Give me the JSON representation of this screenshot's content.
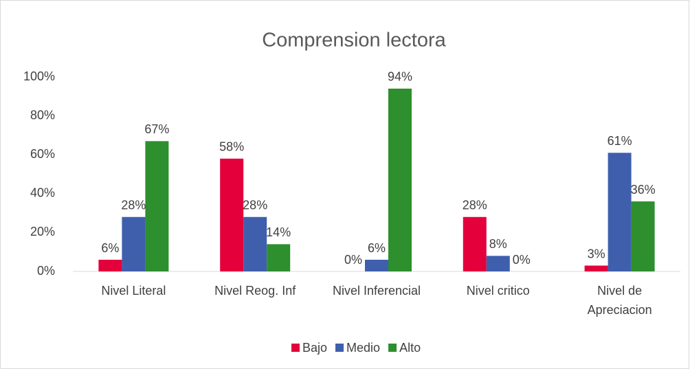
{
  "chart_data": {
    "type": "bar",
    "title": "Comprension lectora",
    "categories": [
      "Nivel Literal",
      "Nivel Reog. Inf",
      "Nivel Inferencial",
      "Nivel critico",
      "Nivel de Apreciacion"
    ],
    "series": [
      {
        "name": "Bajo",
        "color": "#e4003b",
        "values": [
          6,
          58,
          0,
          28,
          3
        ],
        "value_labels": [
          "6%",
          "58%",
          "0%",
          "28%",
          "3%"
        ]
      },
      {
        "name": "Medio",
        "color": "#3f5fad",
        "values": [
          28,
          28,
          6,
          8,
          61
        ],
        "value_labels": [
          "28%",
          "28%",
          "6%",
          "8%",
          "61%"
        ]
      },
      {
        "name": "Alto",
        "color": "#2d8f2d",
        "values": [
          67,
          14,
          94,
          0,
          36
        ],
        "value_labels": [
          "67%",
          "14%",
          "94%",
          "0%",
          "36%"
        ]
      }
    ],
    "ylim": [
      0,
      100
    ],
    "yticks": [
      {
        "value": 0,
        "label": "0%"
      },
      {
        "value": 20,
        "label": "20%"
      },
      {
        "value": 40,
        "label": "40%"
      },
      {
        "value": 60,
        "label": "60%"
      },
      {
        "value": 80,
        "label": "80%"
      },
      {
        "value": 100,
        "label": "100%"
      }
    ],
    "grid": false,
    "legend": "bottom"
  }
}
